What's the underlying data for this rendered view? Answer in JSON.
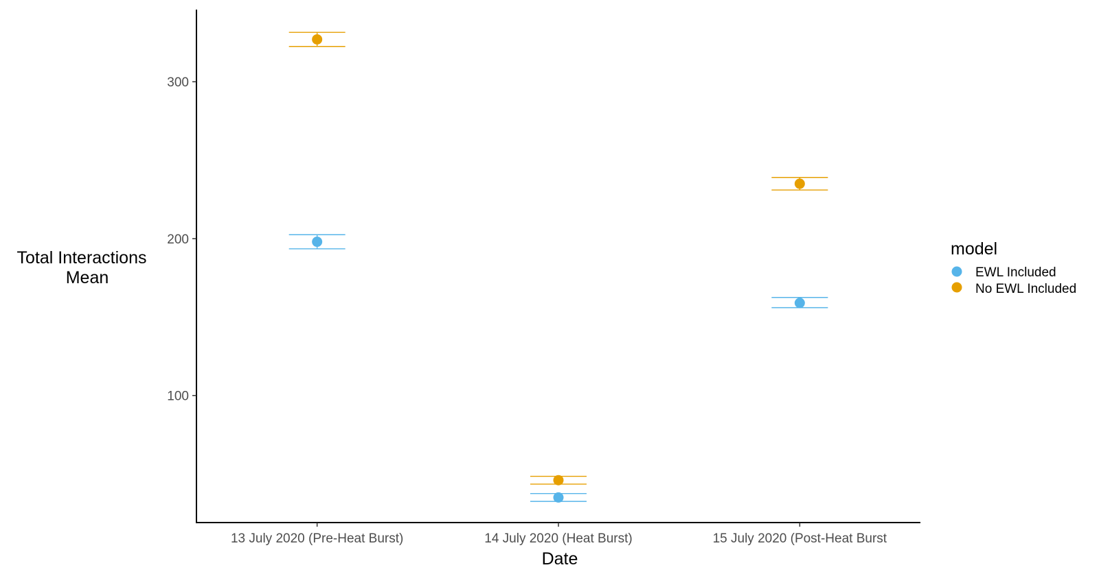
{
  "chart_data": {
    "type": "scatter",
    "xlabel": "Date",
    "ylabel_lines": [
      "Total Interactions",
      "Mean"
    ],
    "categories": [
      "13 July 2020 (Pre-Heat Burst)",
      "14 July 2020 (Heat Burst)",
      "15 July 2020 (Post-Heat Burst"
    ],
    "ylim": [
      19,
      346
    ],
    "yticks": [
      100,
      200,
      300
    ],
    "grid": false,
    "legend": {
      "title": "model",
      "placement": "right"
    },
    "series": [
      {
        "name": "EWL Included",
        "color": "#56B4E9",
        "values": [
          198,
          35,
          159
        ],
        "lower": [
          193.5,
          32.5,
          156
        ],
        "upper": [
          202.5,
          37.5,
          162.5
        ]
      },
      {
        "name": "No EWL Included",
        "color": "#E69F00",
        "values": [
          327,
          46,
          235
        ],
        "lower": [
          322.5,
          43.5,
          231
        ],
        "upper": [
          331.5,
          48.5,
          239
        ]
      }
    ]
  }
}
